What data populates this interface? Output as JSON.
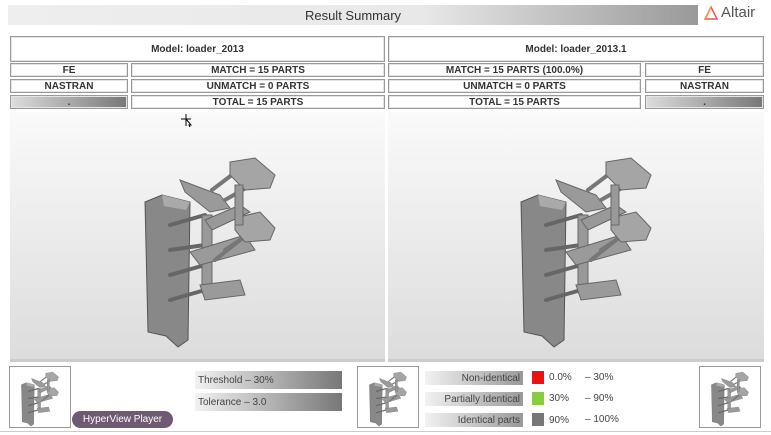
{
  "header": {
    "title": "Result Summary",
    "logo": "Altair"
  },
  "left": {
    "model": "Model: loader_2013",
    "solver_type": "FE",
    "solver": "NASTRAN",
    "dot": ".",
    "match": "MATCH = 15 PARTS",
    "unmatch": "UNMATCH = 0 PARTS",
    "total": "TOTAL = 15 PARTS"
  },
  "right": {
    "model": "Model: loader_2013.1",
    "solver_type": "FE",
    "solver": "NASTRAN",
    "dot": ".",
    "match": "MATCH = 15 PARTS (100.0%)",
    "unmatch": "UNMATCH = 0 PARTS",
    "total": "TOTAL = 15 PARTS"
  },
  "controls": {
    "threshold": "Threshold  –  30%",
    "tolerance": "Tolerance  –  3.0",
    "player_button": "HyperView Player"
  },
  "legend": [
    {
      "label": "Non-identical",
      "color": "#ee1111",
      "from": "0.0%",
      "to": "–  30%"
    },
    {
      "label": "Partially Identical",
      "color": "#88cc44",
      "from": "30%",
      "to": "–  90%"
    },
    {
      "label": "Identical parts",
      "color": "#777777",
      "from": "90%",
      "to": "–  100%"
    }
  ]
}
